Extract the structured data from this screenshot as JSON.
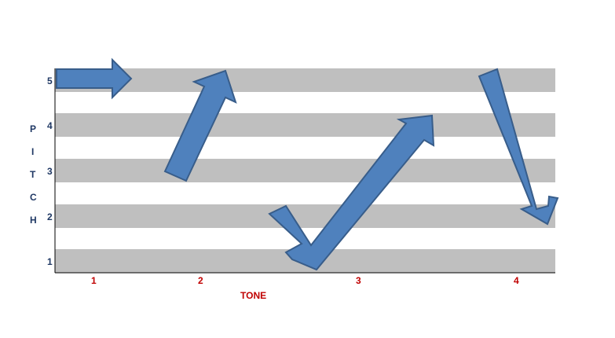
{
  "diagram": {
    "pitch_axis": {
      "label_letters": [
        "P",
        "I",
        "T",
        "C",
        "H"
      ],
      "ticks": [
        "1",
        "2",
        "3",
        "4",
        "5"
      ]
    },
    "tone_axis": {
      "label": "TONE",
      "ticks": [
        "1",
        "2",
        "3",
        "4"
      ]
    },
    "colors": {
      "band": "#bfbfbf",
      "arrow_fill": "#4f81bd",
      "arrow_stroke": "#385d8a",
      "pitch_text": "#1f3864",
      "tone_text": "#c00000"
    },
    "contours": [
      {
        "tone": "1",
        "start_pitch": 5,
        "end_pitch": 5,
        "direction": "level"
      },
      {
        "tone": "2",
        "start_pitch": 3,
        "end_pitch": 5,
        "direction": "rising"
      },
      {
        "tone": "3",
        "start_pitch": 2,
        "mid_pitch": 1,
        "end_pitch": 4,
        "direction": "falling-rising"
      },
      {
        "tone": "4",
        "start_pitch": 5,
        "end_pitch": 2,
        "direction": "falling"
      }
    ]
  }
}
